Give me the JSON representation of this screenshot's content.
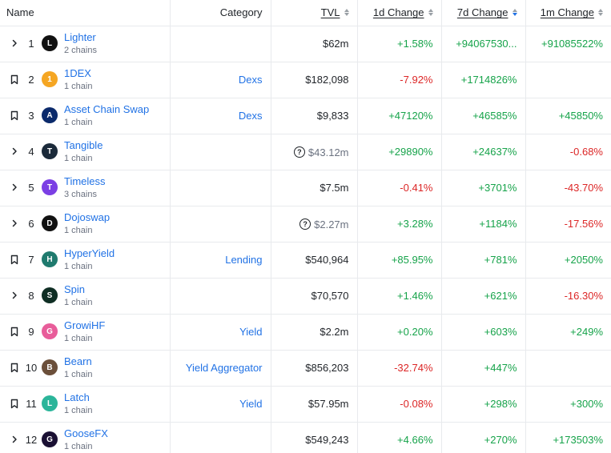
{
  "header": {
    "name": "Name",
    "category": "Category",
    "tvl": "TVL",
    "change_1d": "1d Change",
    "change_7d": "7d Change",
    "change_1m": "1m Change"
  },
  "rows": [
    {
      "control": "chevron-right-icon",
      "rank": "1",
      "name": "Lighter",
      "chains": "2 chains",
      "category": "",
      "tvl": "$62m",
      "tvl_uncertain": false,
      "change_1d": "+1.58%",
      "change_7d": "+94067530...",
      "change_1m": "+91085522%",
      "logo_color": "#111111",
      "logo_text": "L"
    },
    {
      "control": "bookmark-icon",
      "rank": "2",
      "name": "1DEX",
      "chains": "1 chain",
      "category": "Dexs",
      "tvl": "$182,098",
      "tvl_uncertain": false,
      "change_1d": "-7.92%",
      "change_7d": "+1714826%",
      "change_1m": "",
      "logo_color": "#f5a623",
      "logo_text": "1"
    },
    {
      "control": "bookmark-icon",
      "rank": "3",
      "name": "Asset Chain Swap",
      "chains": "1 chain",
      "category": "Dexs",
      "tvl": "$9,833",
      "tvl_uncertain": false,
      "change_1d": "+47120%",
      "change_7d": "+46585%",
      "change_1m": "+45850%",
      "logo_color": "#0b2a6b",
      "logo_text": "A"
    },
    {
      "control": "chevron-right-icon",
      "rank": "4",
      "name": "Tangible",
      "chains": "1 chain",
      "category": "",
      "tvl": "$43.12m",
      "tvl_uncertain": true,
      "change_1d": "+29890%",
      "change_7d": "+24637%",
      "change_1m": "-0.68%",
      "logo_color": "#1b2a3a",
      "logo_text": "T"
    },
    {
      "control": "chevron-right-icon",
      "rank": "5",
      "name": "Timeless",
      "chains": "3 chains",
      "category": "",
      "tvl": "$7.5m",
      "tvl_uncertain": false,
      "change_1d": "-0.41%",
      "change_7d": "+3701%",
      "change_1m": "-43.70%",
      "logo_color": "#7b3fe4",
      "logo_text": "T"
    },
    {
      "control": "chevron-right-icon",
      "rank": "6",
      "name": "Dojoswap",
      "chains": "1 chain",
      "category": "",
      "tvl": "$2.27m",
      "tvl_uncertain": true,
      "change_1d": "+3.28%",
      "change_7d": "+1184%",
      "change_1m": "-17.56%",
      "logo_color": "#111111",
      "logo_text": "D"
    },
    {
      "control": "bookmark-icon",
      "rank": "7",
      "name": "HyperYield",
      "chains": "1 chain",
      "category": "Lending",
      "tvl": "$540,964",
      "tvl_uncertain": false,
      "change_1d": "+85.95%",
      "change_7d": "+781%",
      "change_1m": "+2050%",
      "logo_color": "#1f7a6e",
      "logo_text": "H"
    },
    {
      "control": "chevron-right-icon",
      "rank": "8",
      "name": "Spin",
      "chains": "1 chain",
      "category": "",
      "tvl": "$70,570",
      "tvl_uncertain": false,
      "change_1d": "+1.46%",
      "change_7d": "+621%",
      "change_1m": "-16.30%",
      "logo_color": "#0f2e24",
      "logo_text": "S"
    },
    {
      "control": "bookmark-icon",
      "rank": "9",
      "name": "GrowiHF",
      "chains": "1 chain",
      "category": "Yield",
      "tvl": "$2.2m",
      "tvl_uncertain": false,
      "change_1d": "+0.20%",
      "change_7d": "+603%",
      "change_1m": "+249%",
      "logo_color": "#e85d9a",
      "logo_text": "G"
    },
    {
      "control": "bookmark-icon",
      "rank": "10",
      "name": "Bearn",
      "chains": "1 chain",
      "category": "Yield Aggregator",
      "tvl": "$856,203",
      "tvl_uncertain": false,
      "change_1d": "-32.74%",
      "change_7d": "+447%",
      "change_1m": "",
      "logo_color": "#6b4f3a",
      "logo_text": "B"
    },
    {
      "control": "bookmark-icon",
      "rank": "11",
      "name": "Latch",
      "chains": "1 chain",
      "category": "Yield",
      "tvl": "$57.95m",
      "tvl_uncertain": false,
      "change_1d": "-0.08%",
      "change_7d": "+298%",
      "change_1m": "+300%",
      "logo_color": "#2bb59a",
      "logo_text": "L"
    },
    {
      "control": "chevron-right-icon",
      "rank": "12",
      "name": "GooseFX",
      "chains": "1 chain",
      "category": "",
      "tvl": "$549,243",
      "tvl_uncertain": false,
      "change_1d": "+4.66%",
      "change_7d": "+270%",
      "change_1m": "+173503%",
      "logo_color": "#1a1033",
      "logo_text": "G"
    }
  ],
  "colors": {
    "link": "#2172e5",
    "positive": "#16a34a",
    "negative": "#dc2626"
  }
}
